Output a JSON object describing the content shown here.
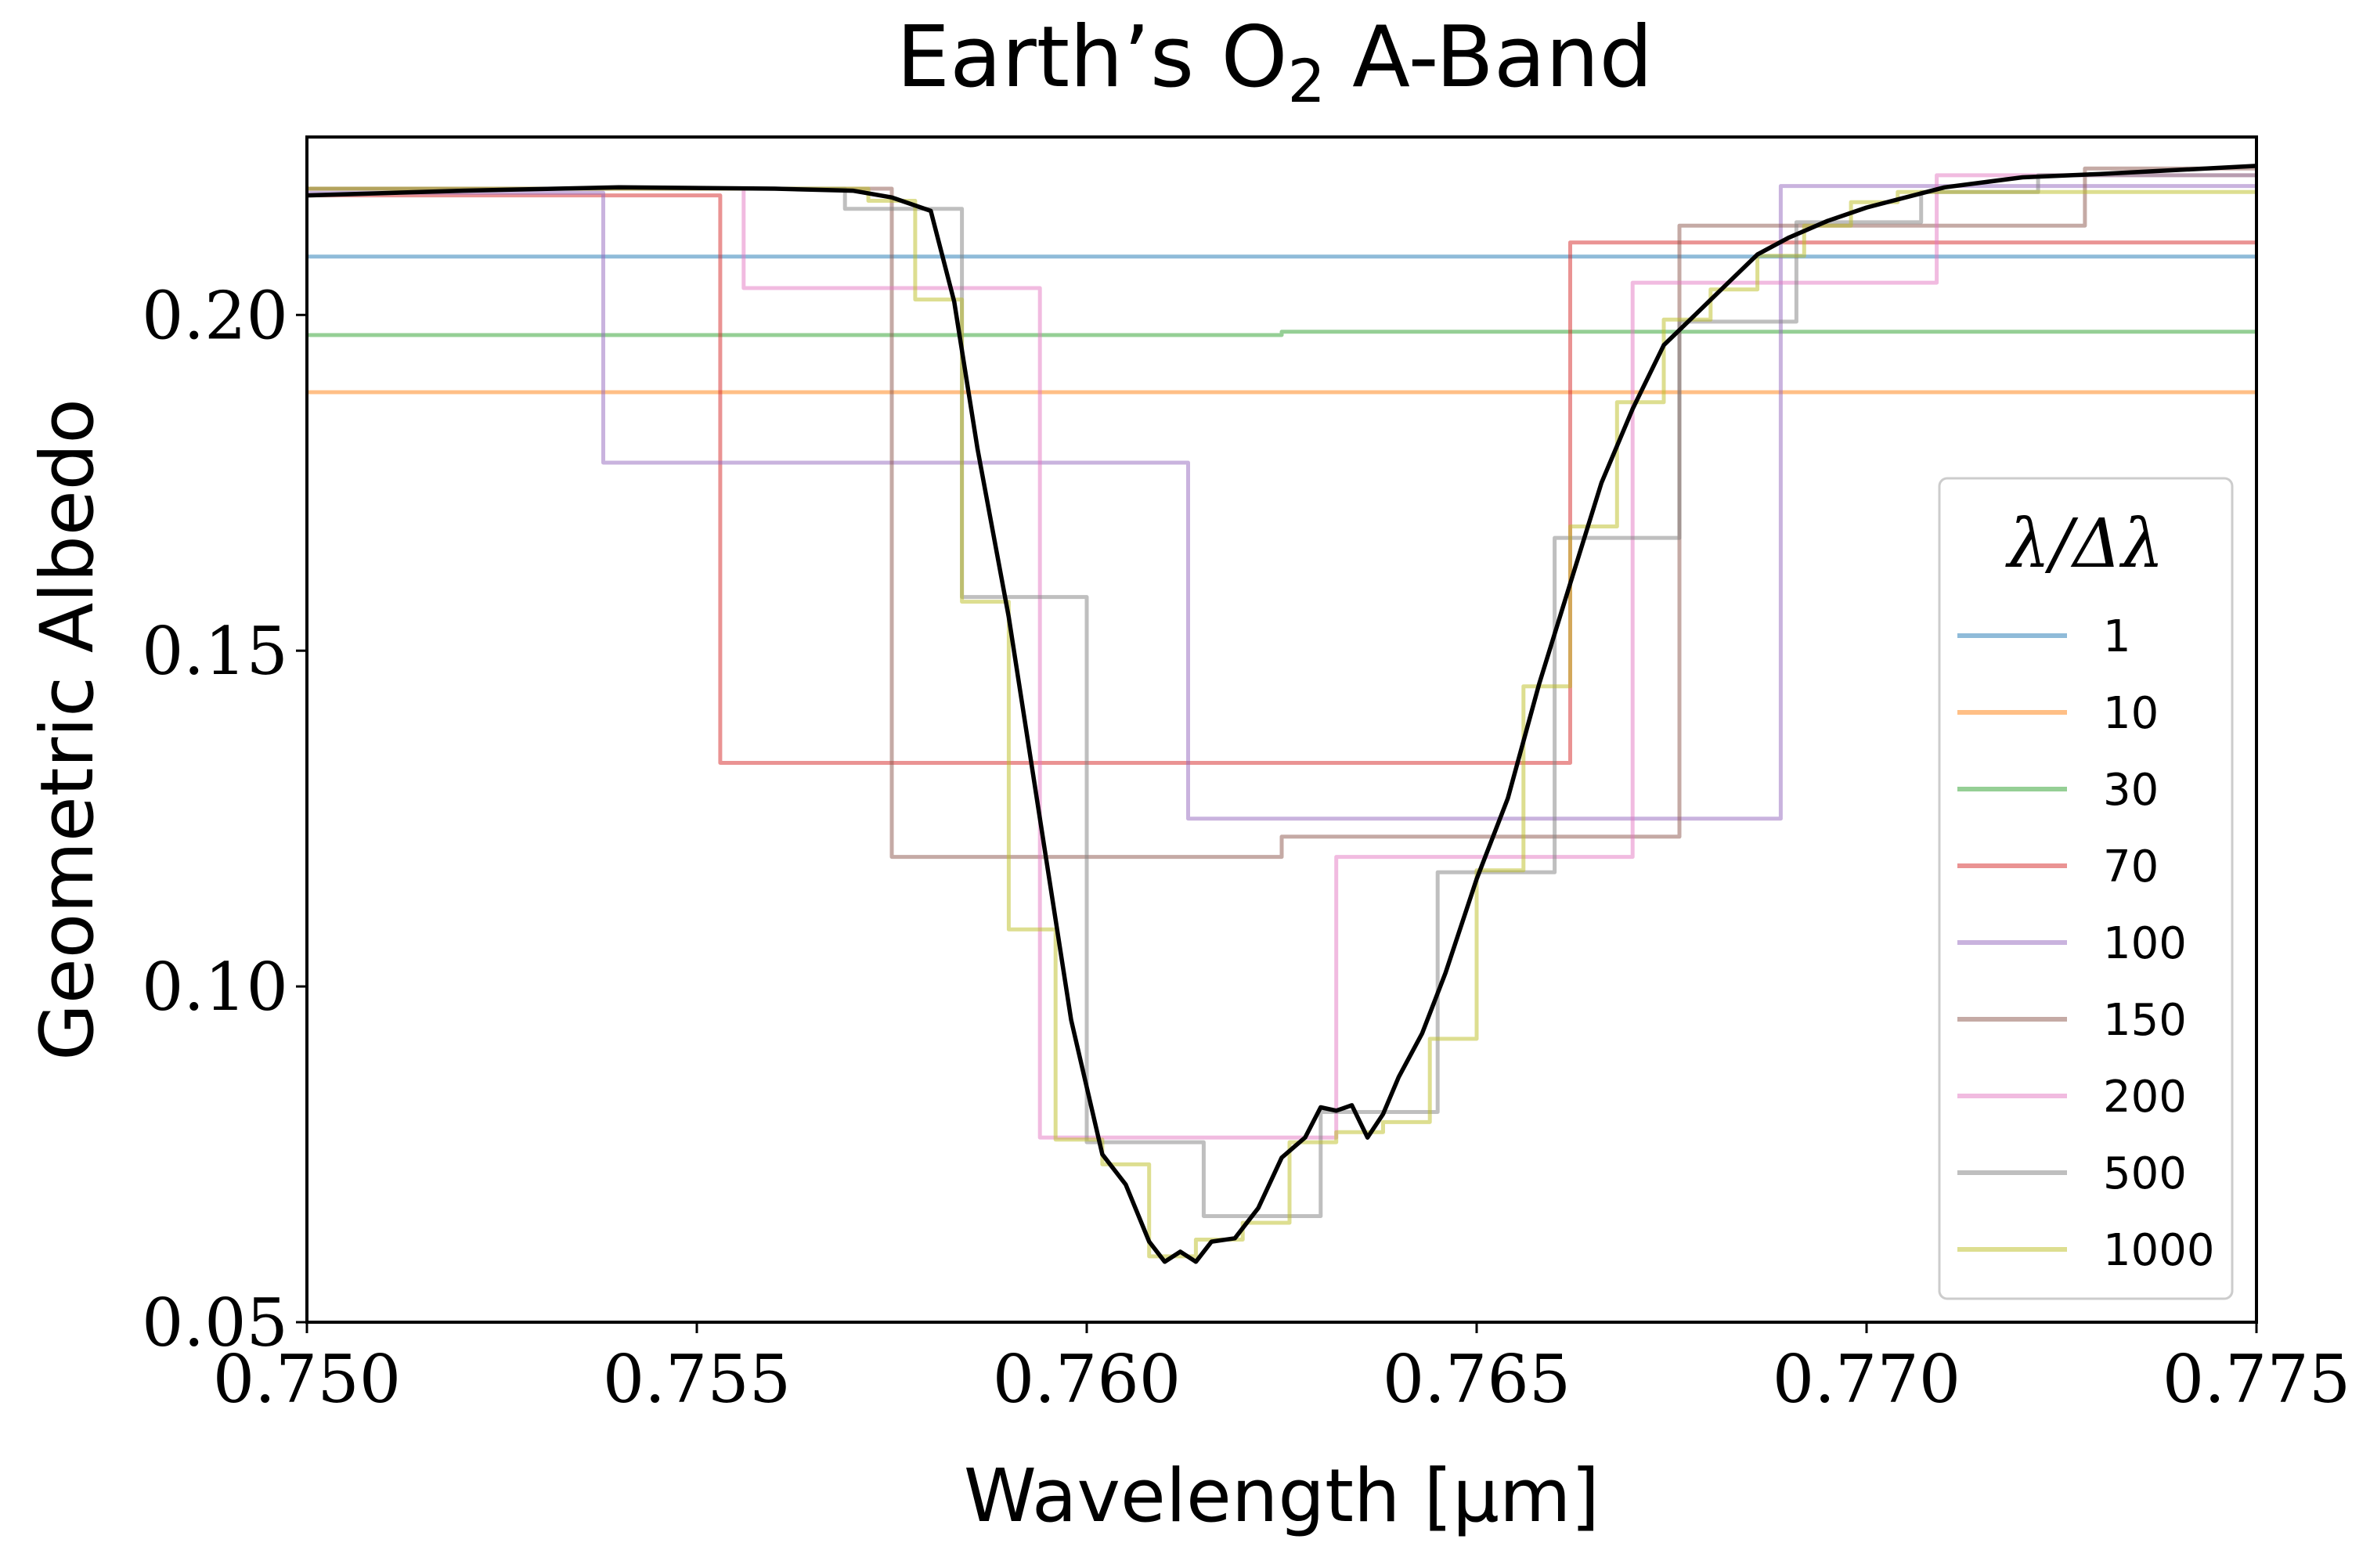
{
  "chart_data": {
    "type": "line",
    "title_main": "Earth’s O",
    "title_sub": "2",
    "title_tail": " A-Band",
    "xlabel": "Wavelength [μm]",
    "ylabel": "Geometric Albedo",
    "xlim": [
      0.75,
      0.775
    ],
    "ylim": [
      0.05,
      0.2265
    ],
    "xticks": [
      "0.750",
      "0.755",
      "0.760",
      "0.765",
      "0.770",
      "0.775"
    ],
    "xtick_values": [
      0.75,
      0.755,
      0.76,
      0.765,
      0.77,
      0.775
    ],
    "yticks": [
      "0.05",
      "0.10",
      "0.15",
      "0.20"
    ],
    "ytick_values": [
      0.05,
      0.1,
      0.15,
      0.2
    ],
    "grid": false,
    "legend": {
      "title": "λ/Δλ",
      "placement": "right"
    },
    "series": [
      {
        "name": "1",
        "color": "#1f77b4",
        "style": "step",
        "x": [
          0.75,
          0.775
        ],
        "y": [
          0.2087,
          0.2087
        ]
      },
      {
        "name": "10",
        "color": "#ff7f0e",
        "style": "step",
        "x": [
          0.75,
          0.775
        ],
        "y": [
          0.1885,
          0.1885
        ]
      },
      {
        "name": "30",
        "color": "#2ca02c",
        "style": "step",
        "x": [
          0.75,
          0.7625,
          0.775
        ],
        "y": [
          0.197,
          0.1975,
          0.1975
        ]
      },
      {
        "name": "70",
        "color": "#d62728",
        "style": "step",
        "x": [
          0.75,
          0.7553,
          0.7662,
          0.775
        ],
        "y": [
          0.2178,
          0.1333,
          0.2108,
          0.2108
        ]
      },
      {
        "name": "100",
        "color": "#9467bd",
        "style": "step",
        "x": [
          0.75,
          0.7538,
          0.7613,
          0.7689,
          0.775
        ],
        "y": [
          0.2182,
          0.178,
          0.125,
          0.2192,
          0.2192
        ]
      },
      {
        "name": "150",
        "color": "#8c564b",
        "style": "step",
        "x": [
          0.75,
          0.7575,
          0.7625,
          0.7676,
          0.7728,
          0.775
        ],
        "y": [
          0.2188,
          0.1193,
          0.1223,
          0.2133,
          0.2218,
          0.2218
        ]
      },
      {
        "name": "200",
        "color": "#e377c2",
        "style": "step",
        "x": [
          0.75,
          0.7556,
          0.7594,
          0.7632,
          0.767,
          0.7709,
          0.775
        ],
        "y": [
          0.2188,
          0.204,
          0.0775,
          0.1193,
          0.2048,
          0.2208,
          0.2208
        ]
      },
      {
        "name": "500",
        "color": "#7f7f7f",
        "style": "step",
        "x": [
          0.75,
          0.7569,
          0.7584,
          0.76,
          0.7615,
          0.763,
          0.7645,
          0.766,
          0.7676,
          0.7691,
          0.7707,
          0.7722,
          0.775
        ],
        "y": [
          0.2188,
          0.2158,
          0.158,
          0.0768,
          0.0658,
          0.0813,
          0.117,
          0.1668,
          0.199,
          0.2138,
          0.2183,
          0.2208,
          0.2208
        ]
      },
      {
        "name": "1000",
        "color": "#bcbd22",
        "style": "step",
        "x": [
          0.75,
          0.7572,
          0.7578,
          0.7584,
          0.759,
          0.7596,
          0.7602,
          0.7608,
          0.7614,
          0.762,
          0.7626,
          0.7632,
          0.7638,
          0.7644,
          0.765,
          0.7656,
          0.7662,
          0.7668,
          0.7674,
          0.768,
          0.7686,
          0.7692,
          0.7698,
          0.7704,
          0.775
        ],
        "y": [
          0.2188,
          0.217,
          0.2023,
          0.1573,
          0.1085,
          0.0772,
          0.0735,
          0.0598,
          0.0623,
          0.0648,
          0.0768,
          0.0783,
          0.0798,
          0.0922,
          0.1173,
          0.1447,
          0.1685,
          0.187,
          0.1993,
          0.2038,
          0.2088,
          0.2133,
          0.2168,
          0.2183,
          0.2183
        ]
      },
      {
        "name": "",
        "color": "#000000",
        "style": "line",
        "x": [
          0.75,
          0.752,
          0.754,
          0.756,
          0.757,
          0.7575,
          0.758,
          0.7583,
          0.7586,
          0.759,
          0.7594,
          0.7598,
          0.7602,
          0.7605,
          0.7608,
          0.761,
          0.7612,
          0.7614,
          0.7616,
          0.7619,
          0.7622,
          0.7625,
          0.7628,
          0.763,
          0.7632,
          0.7634,
          0.7636,
          0.7638,
          0.764,
          0.7643,
          0.7646,
          0.765,
          0.7654,
          0.7658,
          0.7662,
          0.7666,
          0.767,
          0.7674,
          0.7678,
          0.7682,
          0.7686,
          0.769,
          0.7695,
          0.77,
          0.771,
          0.772,
          0.773,
          0.775
        ],
        "y": [
          0.2178,
          0.2185,
          0.219,
          0.2188,
          0.2185,
          0.2175,
          0.2155,
          0.202,
          0.18,
          0.155,
          0.125,
          0.095,
          0.075,
          0.0705,
          0.062,
          0.059,
          0.0605,
          0.059,
          0.062,
          0.0625,
          0.067,
          0.0745,
          0.0775,
          0.082,
          0.0815,
          0.0823,
          0.0775,
          0.081,
          0.0865,
          0.093,
          0.102,
          0.116,
          0.128,
          0.145,
          0.16,
          0.175,
          0.186,
          0.1955,
          0.2,
          0.2045,
          0.209,
          0.2115,
          0.214,
          0.216,
          0.219,
          0.2205,
          0.221,
          0.2222
        ]
      }
    ]
  }
}
